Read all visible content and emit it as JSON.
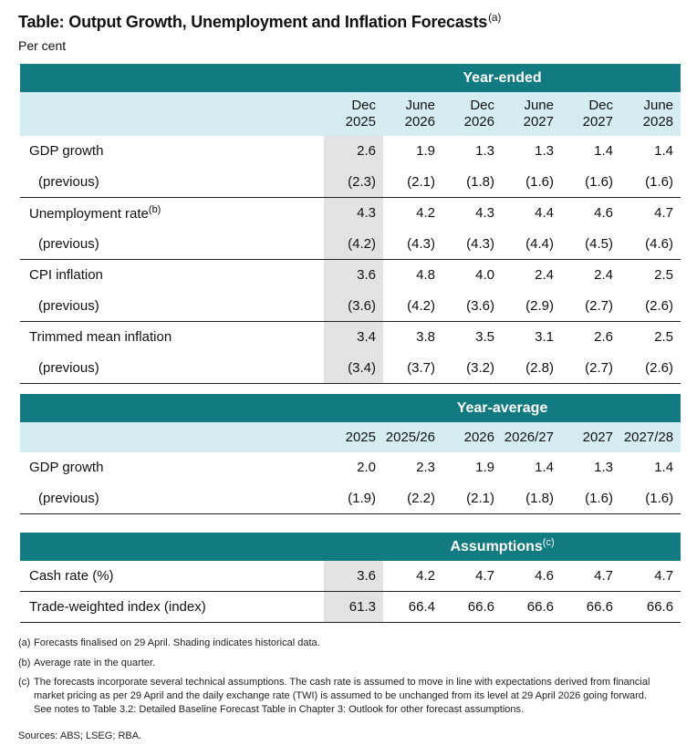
{
  "title": "Table: Output Growth, Unemployment and Inflation Forecasts",
  "title_note": "(a)",
  "subtitle": "Per cent",
  "section1": {
    "band": "Year-ended",
    "columns": [
      {
        "l1": "Dec",
        "l2": "2025"
      },
      {
        "l1": "June",
        "l2": "2026"
      },
      {
        "l1": "Dec",
        "l2": "2026"
      },
      {
        "l1": "June",
        "l2": "2027"
      },
      {
        "l1": "Dec",
        "l2": "2027"
      },
      {
        "l1": "June",
        "l2": "2028"
      }
    ],
    "rows": [
      {
        "label": "GDP growth",
        "sup": "",
        "values": [
          "2.6",
          "1.9",
          "1.3",
          "1.3",
          "1.4",
          "1.4"
        ]
      },
      {
        "label": "(previous)",
        "sup": "",
        "values": [
          "(2.3)",
          "(2.1)",
          "(1.8)",
          "(1.6)",
          "(1.6)",
          "(1.6)"
        ]
      },
      {
        "label": "Unemployment rate",
        "sup": "(b)",
        "values": [
          "4.3",
          "4.2",
          "4.3",
          "4.4",
          "4.6",
          "4.7"
        ]
      },
      {
        "label": "(previous)",
        "sup": "",
        "values": [
          "(4.2)",
          "(4.3)",
          "(4.3)",
          "(4.4)",
          "(4.5)",
          "(4.6)"
        ]
      },
      {
        "label": "CPI inflation",
        "sup": "",
        "values": [
          "3.6",
          "4.8",
          "4.0",
          "2.4",
          "2.4",
          "2.5"
        ]
      },
      {
        "label": "(previous)",
        "sup": "",
        "values": [
          "(3.6)",
          "(4.2)",
          "(3.6)",
          "(2.9)",
          "(2.7)",
          "(2.6)"
        ]
      },
      {
        "label": "Trimmed mean inflation",
        "sup": "",
        "values": [
          "3.4",
          "3.8",
          "3.5",
          "3.1",
          "2.6",
          "2.5"
        ]
      },
      {
        "label": "(previous)",
        "sup": "",
        "values": [
          "(3.4)",
          "(3.7)",
          "(3.2)",
          "(2.8)",
          "(2.7)",
          "(2.6)"
        ]
      }
    ]
  },
  "section2": {
    "band": "Year-average",
    "columns": [
      "2025",
      "2025/26",
      "2026",
      "2026/27",
      "2027",
      "2027/28"
    ],
    "rows": [
      {
        "label": "GDP growth",
        "values": [
          "2.0",
          "2.3",
          "1.9",
          "1.4",
          "1.3",
          "1.4"
        ]
      },
      {
        "label": "(previous)",
        "values": [
          "(1.9)",
          "(2.2)",
          "(2.1)",
          "(1.8)",
          "(1.6)",
          "(1.6)"
        ]
      }
    ]
  },
  "section3": {
    "band": "Assumptions",
    "band_note": "(c)",
    "rows": [
      {
        "label": "Cash rate (%)",
        "values": [
          "3.6",
          "4.2",
          "4.7",
          "4.6",
          "4.7",
          "4.7"
        ]
      },
      {
        "label": "Trade-weighted index (index)",
        "values": [
          "61.3",
          "66.4",
          "66.6",
          "66.6",
          "66.6",
          "66.6"
        ]
      }
    ]
  },
  "notes": [
    {
      "key": "(a)",
      "text": "Forecasts finalised on 29 April. Shading indicates historical data."
    },
    {
      "key": "(b)",
      "text": "Average rate in the quarter."
    },
    {
      "key": "(c)",
      "text": "The forecasts incorporate several technical assumptions. The cash rate is assumed to move in line with expectations derived from financial market pricing as per 29 April and the daily exchange rate (TWI) is assumed to be unchanged from its level at 29 April 2026 going forward. See notes to Table 3.2: Detailed Baseline Forecast Table in Chapter 3: Outlook for other forecast assumptions."
    }
  ],
  "sources": "Sources: ABS; LSEG; RBA."
}
